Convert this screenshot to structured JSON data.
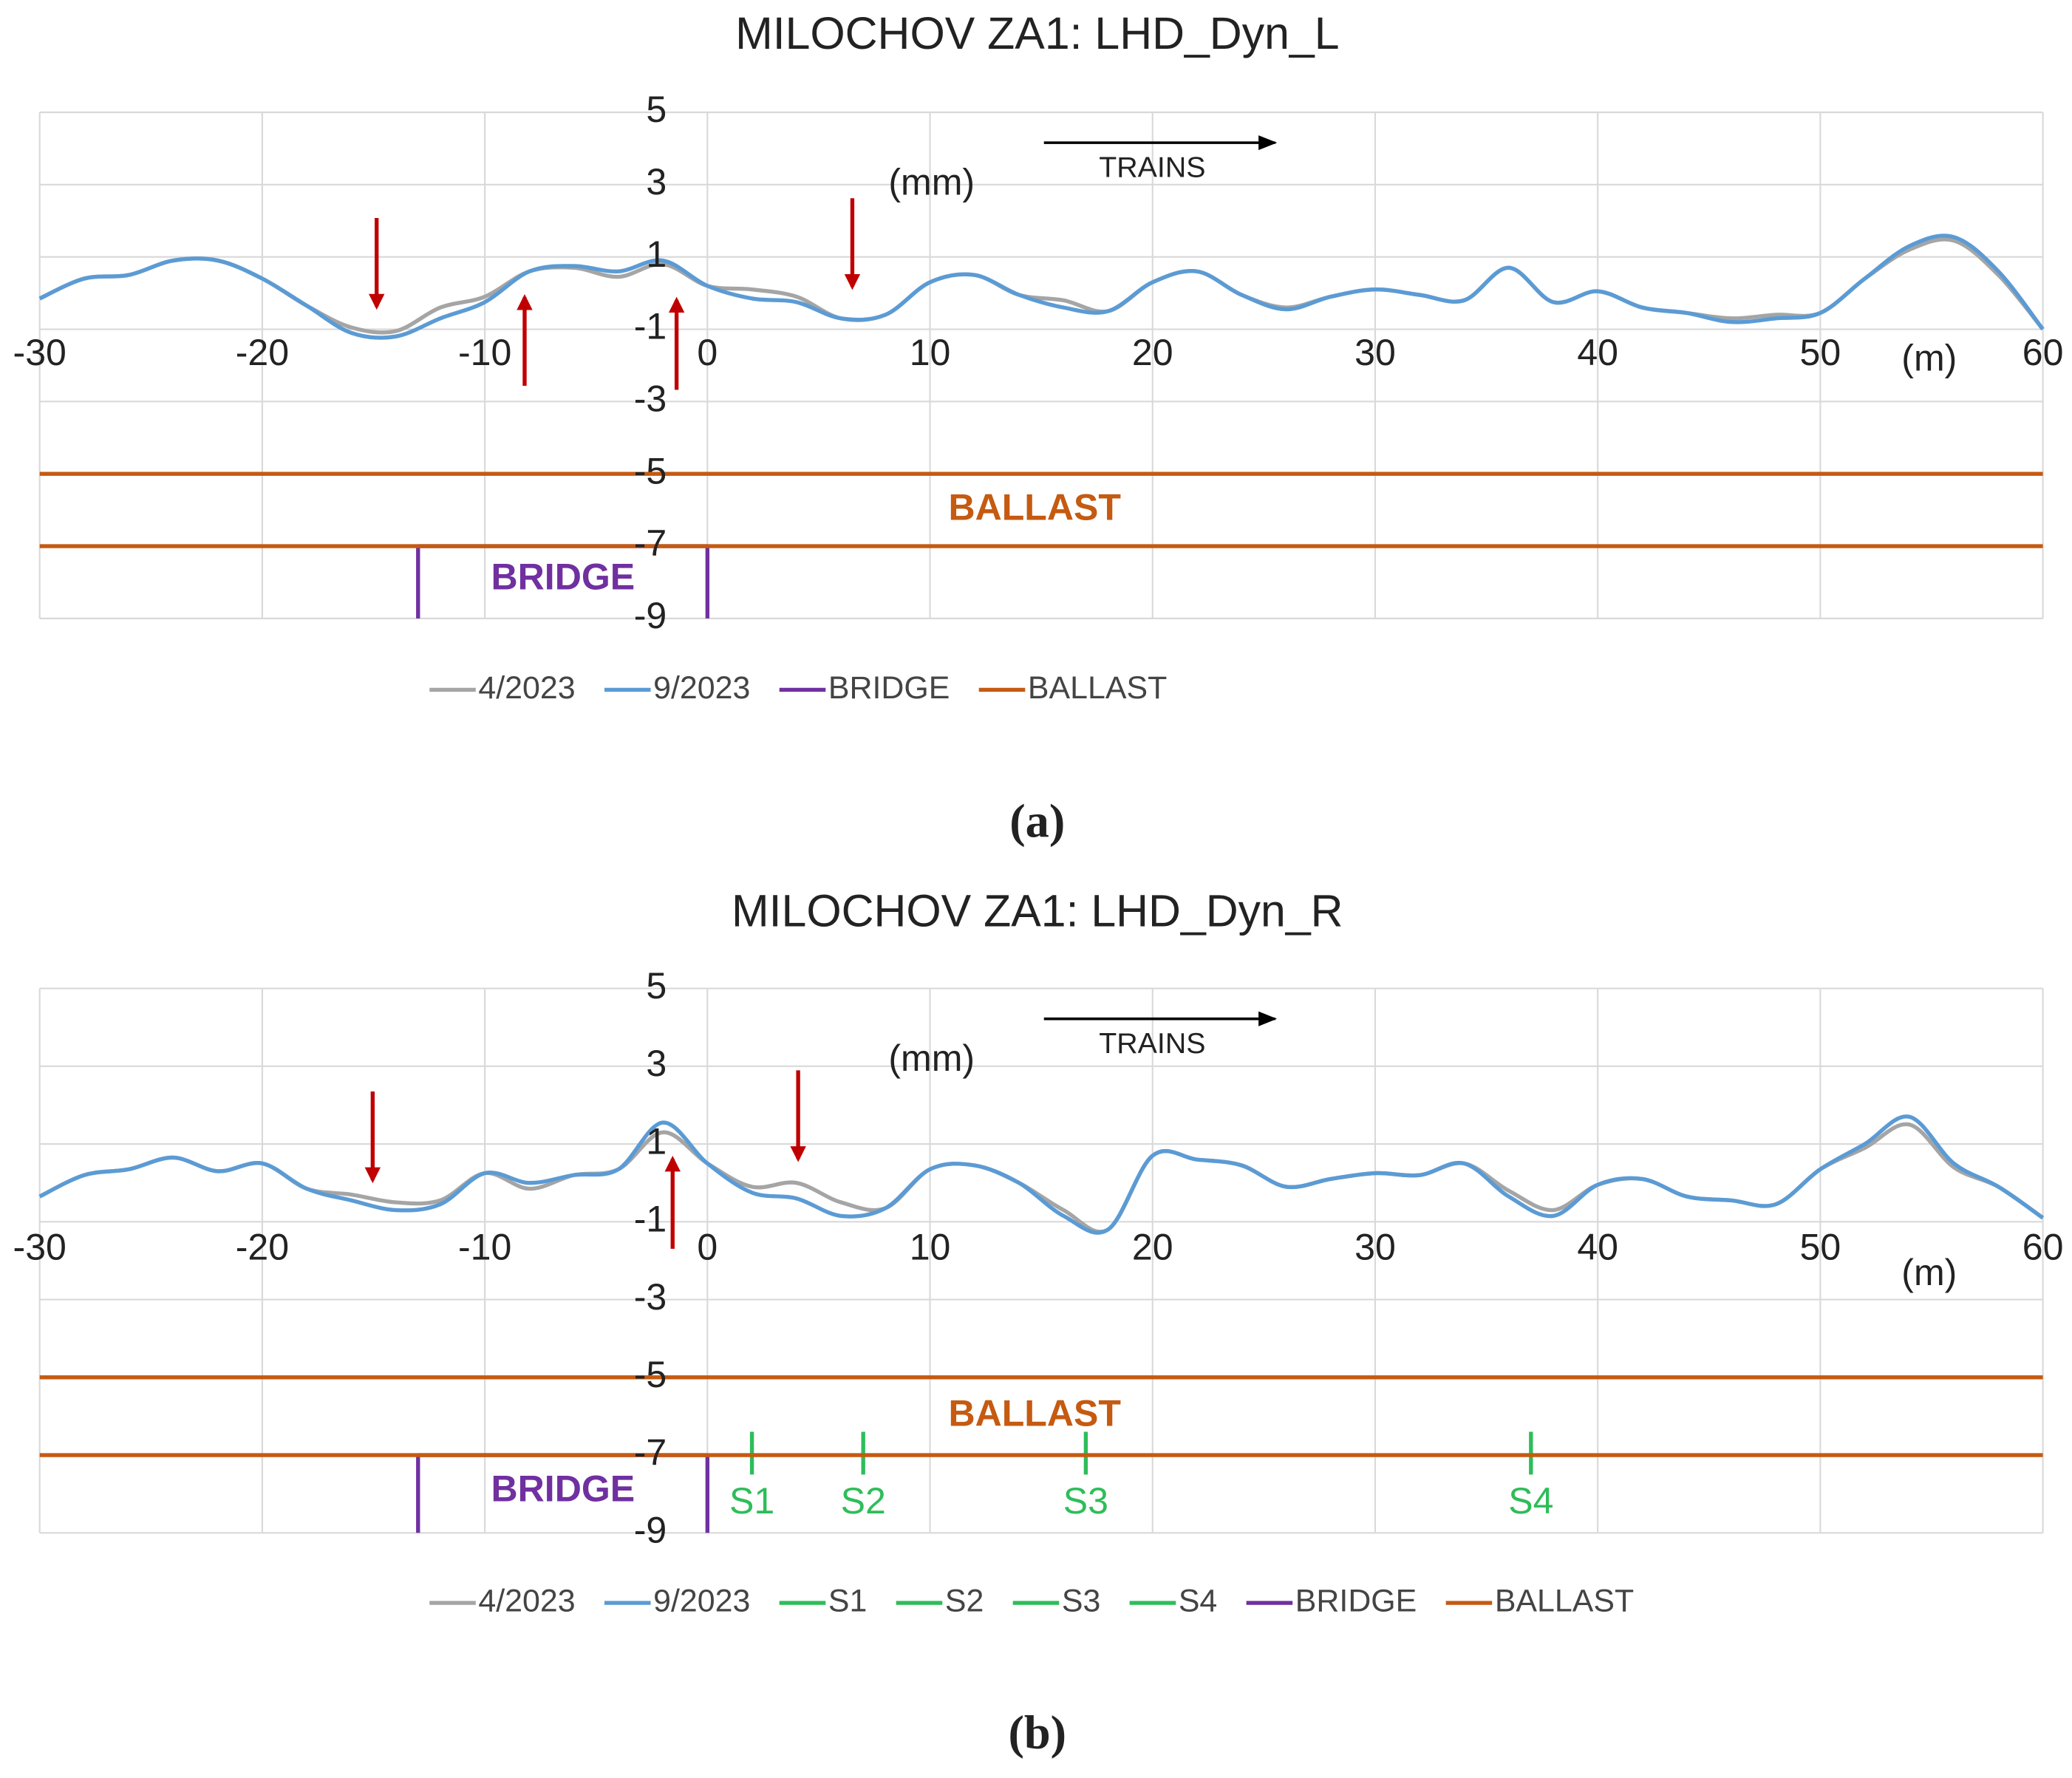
{
  "chart_data": [
    {
      "type": "line",
      "title": "MILOCHOV ZA1: LHD_Dyn_L",
      "panel_label": "(a)",
      "unit_y": "(mm)",
      "unit_x": "(m)",
      "direction": "TRAINS",
      "ballast_label": "BALLAST",
      "bridge_label": "BRIDGE",
      "xlim": [
        -30,
        60
      ],
      "xticks": [
        -30,
        -20,
        -10,
        0,
        10,
        20,
        30,
        40,
        50,
        60
      ],
      "ylim": [
        -9,
        5
      ],
      "yticks": [
        5,
        3,
        1,
        -1,
        -3,
        -5,
        -7,
        -9
      ],
      "grid": true,
      "x": [
        -30,
        -28,
        -26,
        -24,
        -22,
        -20,
        -18,
        -16,
        -14,
        -12,
        -10,
        -8,
        -6,
        -4,
        -2,
        0,
        2,
        4,
        6,
        8,
        10,
        12,
        14,
        16,
        18,
        20,
        22,
        24,
        26,
        28,
        30,
        32,
        34,
        36,
        38,
        40,
        42,
        44,
        46,
        48,
        50,
        52,
        54,
        56,
        58,
        60
      ],
      "series": [
        {
          "name": "4/2023",
          "color": "#a5a5a5",
          "values": [
            -0.15,
            0.4,
            0.5,
            0.9,
            0.9,
            0.4,
            -0.35,
            -0.95,
            -1.05,
            -0.4,
            -0.1,
            0.6,
            0.7,
            0.45,
            0.8,
            0.2,
            0.1,
            -0.1,
            -0.7,
            -0.6,
            0.3,
            0.5,
            -0.05,
            -0.2,
            -0.5,
            0.3,
            0.6,
            -0.05,
            -0.4,
            -0.1,
            0.1,
            -0.05,
            -0.2,
            0.7,
            -0.25,
            0.05,
            -0.4,
            -0.55,
            -0.7,
            -0.6,
            -0.55,
            0.4,
            1.2,
            1.45,
            0.5,
            -1.0
          ]
        },
        {
          "name": "9/2023",
          "color": "#5b9bd5",
          "values": [
            -0.15,
            0.4,
            0.5,
            0.9,
            0.9,
            0.4,
            -0.35,
            -1.1,
            -1.2,
            -0.7,
            -0.25,
            0.6,
            0.75,
            0.6,
            0.9,
            0.2,
            -0.15,
            -0.25,
            -0.7,
            -0.6,
            0.3,
            0.5,
            -0.05,
            -0.4,
            -0.5,
            0.3,
            0.6,
            -0.05,
            -0.45,
            -0.1,
            0.1,
            -0.05,
            -0.2,
            0.7,
            -0.25,
            0.05,
            -0.4,
            -0.55,
            -0.8,
            -0.7,
            -0.55,
            0.4,
            1.3,
            1.55,
            0.6,
            -1.0
          ]
        },
        {
          "name": "BRIDGE",
          "color": "#7030a0",
          "x": [
            -13,
            -13,
            0,
            0
          ],
          "values": [
            -9,
            -7,
            -7,
            -9
          ]
        },
        {
          "name": "BALLAST",
          "color": "#c55a11",
          "x": [
            -30,
            60,
            60,
            -30,
            60
          ],
          "values": [
            -5,
            -5,
            null,
            -7,
            -7
          ]
        }
      ]
    },
    {
      "type": "line",
      "title": "MILOCHOV ZA1: LHD_Dyn_R",
      "panel_label": "(b)",
      "unit_y": "(mm)",
      "unit_x": "(m)",
      "direction": "TRAINS",
      "ballast_label": "BALLAST",
      "bridge_label": "BRIDGE",
      "xlim": [
        -30,
        60
      ],
      "xticks": [
        -30,
        -20,
        -10,
        0,
        10,
        20,
        30,
        40,
        50,
        60
      ],
      "ylim": [
        -9,
        5
      ],
      "yticks": [
        5,
        3,
        1,
        -1,
        -3,
        -5,
        -7,
        -9
      ],
      "grid": true,
      "x": [
        -30,
        -28,
        -26,
        -24,
        -22,
        -20,
        -18,
        -16,
        -14,
        -12,
        -10,
        -8,
        -6,
        -4,
        -2,
        0,
        2,
        4,
        6,
        8,
        10,
        12,
        14,
        16,
        18,
        20,
        22,
        24,
        26,
        28,
        30,
        32,
        34,
        36,
        38,
        40,
        42,
        44,
        46,
        48,
        50,
        52,
        54,
        56,
        58,
        60
      ],
      "series": [
        {
          "name": "4/2023",
          "color": "#a5a5a5",
          "values": [
            -0.35,
            0.2,
            0.35,
            0.65,
            0.3,
            0.5,
            -0.15,
            -0.3,
            -0.5,
            -0.45,
            0.25,
            -0.15,
            0.2,
            0.35,
            1.3,
            0.5,
            -0.1,
            0,
            -0.5,
            -0.65,
            0.35,
            0.45,
            0,
            -0.7,
            -1.2,
            0.7,
            0.6,
            0.45,
            -0.1,
            0.1,
            0.25,
            0.2,
            0.5,
            -0.2,
            -0.7,
            -0.05,
            0.1,
            -0.35,
            -0.45,
            -0.55,
            0.35,
            0.9,
            1.5,
            0.4,
            -0.1,
            -0.9
          ]
        },
        {
          "name": "9/2023",
          "color": "#5b9bd5",
          "values": [
            -0.35,
            0.2,
            0.35,
            0.65,
            0.3,
            0.5,
            -0.15,
            -0.45,
            -0.7,
            -0.55,
            0.25,
            0,
            0.2,
            0.35,
            1.55,
            0.5,
            -0.25,
            -0.4,
            -0.85,
            -0.65,
            0.35,
            0.45,
            0,
            -0.85,
            -1.2,
            0.7,
            0.6,
            0.45,
            -0.1,
            0.1,
            0.25,
            0.2,
            0.5,
            -0.35,
            -0.85,
            -0.05,
            0.1,
            -0.35,
            -0.45,
            -0.55,
            0.35,
            1.0,
            1.7,
            0.5,
            -0.1,
            -0.9
          ]
        },
        {
          "name": "S1",
          "color": "#2ebd59",
          "label": "S1",
          "x": [
            2,
            2
          ],
          "values": [
            -6.4,
            -7.5
          ]
        },
        {
          "name": "S2",
          "color": "#2ebd59",
          "label": "S2",
          "x": [
            7,
            7
          ],
          "values": [
            -6.4,
            -7.5
          ]
        },
        {
          "name": "S3",
          "color": "#2ebd59",
          "label": "S3",
          "x": [
            17,
            17
          ],
          "values": [
            -6.4,
            -7.5
          ]
        },
        {
          "name": "S4",
          "color": "#2ebd59",
          "label": "S4",
          "x": [
            37,
            37
          ],
          "values": [
            -6.4,
            -7.5
          ]
        },
        {
          "name": "BRIDGE",
          "color": "#7030a0",
          "x": [
            -13,
            -13,
            0,
            0
          ],
          "values": [
            -9,
            -7,
            -7,
            -9
          ]
        },
        {
          "name": "BALLAST",
          "color": "#c55a11",
          "x": [
            -30,
            60,
            60,
            -30,
            60
          ],
          "values": [
            -5,
            -5,
            null,
            -7,
            -7
          ]
        }
      ]
    }
  ]
}
